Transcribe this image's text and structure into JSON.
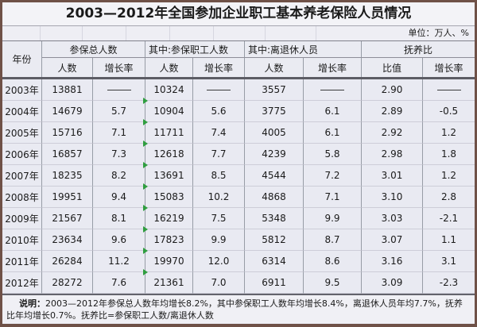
{
  "title": "2003—2012年全国参加企业职工基本养老保险人员情况",
  "unit_label": "单位：万人、%",
  "colors": {
    "outer_border": "#6f5147",
    "cell_background": "#e9eaf2",
    "grid_line": "#979ca6",
    "row_divider": "#cdcdd8",
    "header_separator": "#5c5c64",
    "marker_green": "#2f9e3f"
  },
  "table": {
    "header": {
      "year": "年份",
      "groups": [
        {
          "label": "参保总人数"
        },
        {
          "label": "其中:参保职工人数"
        },
        {
          "label": "其中:离退休人员"
        },
        {
          "label": "抚养比"
        }
      ],
      "sub": [
        "人数",
        "增长率",
        "人数",
        "增长率",
        "人数",
        "增长率",
        "比值",
        "增长率"
      ]
    },
    "rows": [
      {
        "year": "2003年",
        "cells": [
          "13881",
          "——",
          "10324",
          "——",
          "3557",
          "——",
          "2.90",
          "——"
        ]
      },
      {
        "year": "2004年",
        "cells": [
          "14679",
          "5.7",
          "10904",
          "5.6",
          "3775",
          "6.1",
          "2.89",
          "-0.5"
        ]
      },
      {
        "year": "2005年",
        "cells": [
          "15716",
          "7.1",
          "11711",
          "7.4",
          "4005",
          "6.1",
          "2.92",
          "1.2"
        ]
      },
      {
        "year": "2006年",
        "cells": [
          "16857",
          "7.3",
          "12618",
          "7.7",
          "4239",
          "5.8",
          "2.98",
          "1.8"
        ]
      },
      {
        "year": "2007年",
        "cells": [
          "18235",
          "8.2",
          "13691",
          "8.5",
          "4544",
          "7.2",
          "3.01",
          "1.2"
        ]
      },
      {
        "year": "2008年",
        "cells": [
          "19951",
          "9.4",
          "15083",
          "10.2",
          "4868",
          "7.1",
          "3.10",
          "2.8"
        ]
      },
      {
        "year": "2009年",
        "cells": [
          "21567",
          "8.1",
          "16219",
          "7.5",
          "5348",
          "9.9",
          "3.03",
          "-2.1"
        ]
      },
      {
        "year": "2010年",
        "cells": [
          "23634",
          "9.6",
          "17823",
          "9.9",
          "5812",
          "8.7",
          "3.07",
          "1.1"
        ]
      },
      {
        "year": "2011年",
        "cells": [
          "26284",
          "11.2",
          "19970",
          "12.0",
          "6314",
          "8.6",
          "3.16",
          "3.1"
        ]
      },
      {
        "year": "2012年",
        "cells": [
          "28272",
          "7.6",
          "21361",
          "7.0",
          "6911",
          "9.5",
          "3.09",
          "-2.3"
        ]
      }
    ]
  },
  "footnote": {
    "label": "说明：",
    "text": "2003—2012年参保总人数年均增长8.2%，其中参保职工人数年均增长8.4%，离退休人员年均7.7%，抚养比年均增长0.7%。抚养比=参保职工人数/离退休人数"
  }
}
